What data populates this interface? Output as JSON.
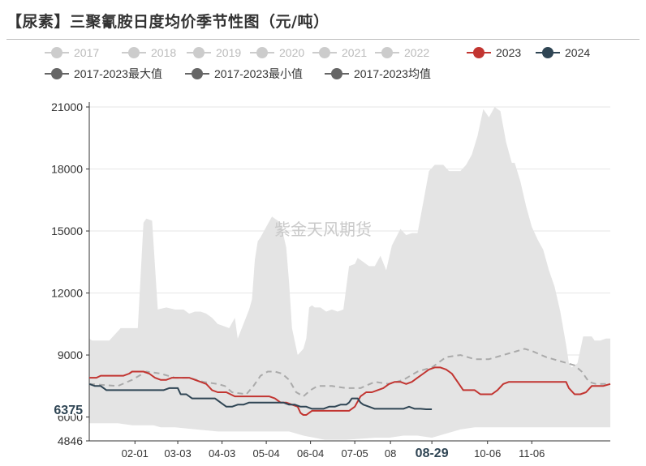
{
  "title": "【尿素】三聚氰胺日度均价季节性图（元/吨）",
  "watermark": "紫金天风期货",
  "legend": [
    {
      "label": "2017",
      "color": "#cccccc",
      "text_color": "#bbbbbb"
    },
    {
      "label": "2018",
      "color": "#cccccc",
      "text_color": "#bbbbbb"
    },
    {
      "label": "2019",
      "color": "#cccccc",
      "text_color": "#bbbbbb"
    },
    {
      "label": "2020",
      "color": "#cccccc",
      "text_color": "#bbbbbb"
    },
    {
      "label": "2021",
      "color": "#cccccc",
      "text_color": "#bbbbbb"
    },
    {
      "label": "2022",
      "color": "#cccccc",
      "text_color": "#bbbbbb"
    },
    {
      "label": "2023",
      "color": "#c23531",
      "text_color": "#333333"
    },
    {
      "label": "2024",
      "color": "#2f4554",
      "text_color": "#333333"
    },
    {
      "label": "2017-2023最大值",
      "color": "#666666",
      "text_color": "#333333"
    },
    {
      "label": "2017-2023最小值",
      "color": "#666666",
      "text_color": "#333333"
    },
    {
      "label": "2017-2023均值",
      "color": "#666666",
      "text_color": "#333333"
    }
  ],
  "chart_data": {
    "type": "area",
    "title": "【尿素】三聚氰胺日度均价季节性图（元/吨）",
    "ylim": [
      4846,
      21000
    ],
    "yticks": [
      4846,
      6000,
      9000,
      12000,
      15000,
      18000,
      21000
    ],
    "xlim": [
      0,
      365
    ],
    "xticks": [
      {
        "day": 32,
        "label": "02-01"
      },
      {
        "day": 62,
        "label": "03-03"
      },
      {
        "day": 93,
        "label": "04-03"
      },
      {
        "day": 124,
        "label": "05-04"
      },
      {
        "day": 155,
        "label": "06-04"
      },
      {
        "day": 186,
        "label": "07-05"
      },
      {
        "day": 211,
        "label": "08"
      },
      {
        "day": 240,
        "label": "08-29",
        "highlight": true
      },
      {
        "day": 279,
        "label": "10-06"
      },
      {
        "day": 310,
        "label": "11-06"
      }
    ],
    "y_marker": {
      "value": 6375,
      "label": "6375"
    },
    "grid": true,
    "legend_position": "top-left",
    "colors": {
      "band": "#e4e4e4",
      "2023": "#c23531",
      "2024": "#2f4554",
      "mean": "#aaaaaa"
    },
    "series": [
      {
        "name": "2017-2023最大值",
        "role": "band_upper",
        "x": [
          0,
          2,
          8,
          14,
          22,
          28,
          34,
          38,
          40,
          44,
          48,
          54,
          60,
          66,
          70,
          74,
          78,
          82,
          86,
          90,
          94,
          98,
          102,
          104,
          108,
          112,
          114,
          116,
          118,
          120,
          124,
          128,
          134,
          138,
          140,
          142,
          146,
          150,
          152,
          154,
          156,
          158,
          162,
          166,
          170,
          174,
          178,
          182,
          186,
          188,
          192,
          196,
          200,
          204,
          208,
          212,
          218,
          222,
          226,
          230,
          234,
          238,
          242,
          244,
          248,
          252,
          256,
          260,
          264,
          268,
          272,
          276,
          280,
          284,
          288,
          292,
          294,
          296,
          298,
          302,
          306,
          310,
          314,
          318,
          322,
          326,
          330,
          334,
          336,
          338,
          342,
          346,
          350,
          352,
          354,
          358,
          362,
          365
        ],
        "y": [
          9800,
          9700,
          9700,
          9700,
          10300,
          10300,
          10300,
          15400,
          15600,
          15500,
          11200,
          11300,
          11200,
          11200,
          11000,
          11100,
          11100,
          11000,
          10800,
          10500,
          10400,
          10300,
          10800,
          9800,
          10500,
          11200,
          11700,
          13600,
          14500,
          14700,
          15200,
          15700,
          15400,
          14200,
          12500,
          10300,
          9000,
          9300,
          9800,
          11300,
          11400,
          11300,
          11300,
          11100,
          11200,
          11100,
          11200,
          13300,
          13400,
          13700,
          13500,
          13300,
          13300,
          13800,
          13100,
          14300,
          15100,
          14800,
          14900,
          14900,
          16400,
          17900,
          18200,
          18200,
          18200,
          17900,
          17900,
          17900,
          18200,
          18700,
          19600,
          20900,
          20500,
          21000,
          20800,
          19300,
          18800,
          18300,
          18300,
          17400,
          16200,
          15200,
          14600,
          14100,
          13100,
          12300,
          11100,
          9500,
          8600,
          8400,
          8600,
          9900,
          9900,
          9900,
          9700,
          9700,
          9800,
          9800
        ]
      },
      {
        "name": "2017-2023最小值",
        "role": "band_lower",
        "x": [
          0,
          20,
          30,
          45,
          50,
          60,
          75,
          90,
          100,
          110,
          120,
          135,
          140,
          150,
          165,
          180,
          200,
          210,
          220,
          230,
          240,
          250,
          260,
          270,
          280,
          300,
          320,
          340,
          350,
          365
        ],
        "y": [
          5700,
          5700,
          5600,
          5600,
          5500,
          5500,
          5400,
          5300,
          5300,
          5300,
          5300,
          5300,
          5300,
          5100,
          4900,
          4900,
          5000,
          5000,
          5100,
          5100,
          5000,
          5200,
          5400,
          5500,
          5500,
          5500,
          5500,
          5500,
          5500,
          5500
        ]
      },
      {
        "name": "2017-2023均值",
        "role": "mean",
        "x": [
          0,
          20,
          30,
          40,
          50,
          60,
          70,
          80,
          90,
          95,
          100,
          110,
          115,
          120,
          125,
          130,
          135,
          140,
          145,
          150,
          155,
          160,
          170,
          180,
          190,
          200,
          210,
          220,
          230,
          240,
          250,
          260,
          270,
          280,
          290,
          300,
          305,
          310,
          320,
          330,
          340,
          345,
          350,
          355,
          365
        ],
        "y": [
          7600,
          7500,
          7800,
          8200,
          8100,
          7900,
          7900,
          7700,
          7600,
          7500,
          7200,
          7100,
          7500,
          8000,
          8200,
          8200,
          8100,
          7800,
          7200,
          7000,
          7300,
          7500,
          7500,
          7400,
          7400,
          7700,
          7600,
          7800,
          8200,
          8400,
          8900,
          9000,
          8800,
          8800,
          9000,
          9200,
          9300,
          9200,
          8900,
          8700,
          8500,
          8200,
          7700,
          7600,
          7600
        ]
      },
      {
        "name": "2023",
        "role": "line",
        "x": [
          0,
          5,
          8,
          12,
          18,
          24,
          28,
          30,
          34,
          38,
          42,
          46,
          50,
          54,
          58,
          62,
          66,
          70,
          74,
          78,
          82,
          86,
          90,
          96,
          102,
          108,
          114,
          120,
          126,
          130,
          134,
          138,
          142,
          146,
          148,
          150,
          152,
          156,
          160,
          166,
          172,
          178,
          182,
          186,
          190,
          194,
          198,
          202,
          206,
          210,
          214,
          218,
          222,
          226,
          230,
          234,
          238,
          242,
          246,
          250,
          254,
          258,
          262,
          266,
          270,
          274,
          278,
          282,
          286,
          290,
          294,
          298,
          302,
          306,
          310,
          314,
          318,
          322,
          326,
          330,
          334,
          336,
          340,
          344,
          348,
          352,
          356,
          360,
          365
        ],
        "y": [
          7900,
          7900,
          8000,
          8000,
          8000,
          8000,
          8100,
          8200,
          8200,
          8200,
          8100,
          7900,
          7800,
          7800,
          7900,
          7900,
          7900,
          7900,
          7800,
          7700,
          7600,
          7300,
          7200,
          7200,
          7000,
          7000,
          7000,
          7000,
          7000,
          6900,
          6700,
          6700,
          6600,
          6500,
          6200,
          6100,
          6100,
          6300,
          6300,
          6300,
          6300,
          6300,
          6300,
          6500,
          7000,
          7200,
          7200,
          7300,
          7400,
          7600,
          7700,
          7700,
          7600,
          7700,
          7900,
          8100,
          8300,
          8400,
          8400,
          8300,
          8100,
          7700,
          7300,
          7300,
          7300,
          7100,
          7100,
          7100,
          7300,
          7600,
          7700,
          7700,
          7700,
          7700,
          7700,
          7700,
          7700,
          7700,
          7700,
          7700,
          7700,
          7400,
          7100,
          7100,
          7200,
          7500,
          7500,
          7500,
          7600
        ]
      },
      {
        "name": "2024",
        "role": "line",
        "x": [
          0,
          4,
          8,
          12,
          16,
          20,
          24,
          28,
          32,
          36,
          40,
          44,
          48,
          52,
          56,
          60,
          62,
          64,
          68,
          72,
          76,
          80,
          84,
          88,
          92,
          96,
          100,
          104,
          108,
          112,
          116,
          120,
          124,
          128,
          132,
          136,
          140,
          144,
          148,
          152,
          156,
          160,
          164,
          168,
          172,
          176,
          180,
          182,
          184,
          186,
          188,
          190,
          192,
          196,
          200,
          204,
          208,
          212,
          216,
          220,
          224,
          228,
          232,
          236,
          240
        ],
        "y": [
          7600,
          7500,
          7500,
          7300,
          7300,
          7300,
          7300,
          7300,
          7300,
          7300,
          7300,
          7300,
          7300,
          7300,
          7400,
          7400,
          7400,
          7100,
          7100,
          6900,
          6900,
          6900,
          6900,
          6900,
          6700,
          6500,
          6500,
          6600,
          6600,
          6700,
          6700,
          6700,
          6700,
          6700,
          6700,
          6700,
          6600,
          6600,
          6500,
          6500,
          6400,
          6400,
          6400,
          6500,
          6500,
          6600,
          6600,
          6700,
          6900,
          6900,
          6900,
          6700,
          6600,
          6500,
          6400,
          6400,
          6400,
          6400,
          6400,
          6400,
          6500,
          6400,
          6400,
          6375,
          6375
        ]
      }
    ]
  }
}
